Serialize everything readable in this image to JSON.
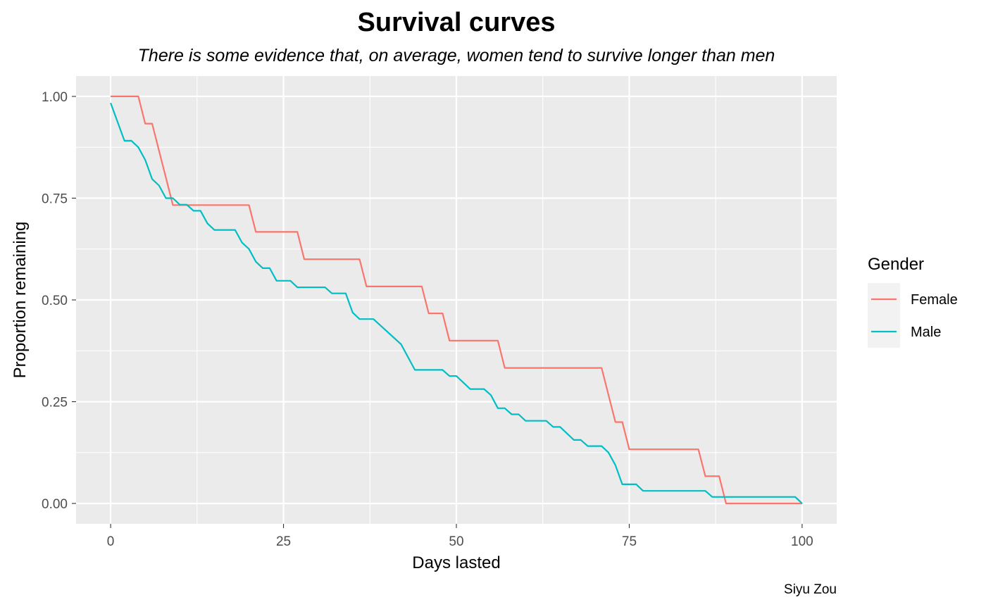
{
  "chart_data": {
    "type": "line",
    "title": "Survival curves",
    "subtitle": "There is some evidence that, on average, women tend to survive longer than men",
    "xlabel": "Days lasted",
    "ylabel": "Proportion remaining",
    "caption": "Siyu Zou",
    "xlim": [
      -5,
      105
    ],
    "ylim": [
      -0.05,
      1.05
    ],
    "x_ticks": [
      0,
      25,
      50,
      75,
      100
    ],
    "x_tick_labels": [
      "0",
      "25",
      "50",
      "75",
      "100"
    ],
    "y_ticks": [
      0,
      0.25,
      0.5,
      0.75,
      1.0
    ],
    "y_tick_labels": [
      "0.00",
      "0.25",
      "0.50",
      "0.75",
      "1.00"
    ],
    "grid": true,
    "background": "#ebebeb",
    "legend": {
      "title": "Gender",
      "position": "right",
      "entries": [
        "Female",
        "Male"
      ]
    },
    "series": [
      {
        "name": "Female",
        "color": "#f8766d",
        "x": [
          0,
          4,
          5,
          6,
          9,
          20,
          21,
          27,
          28,
          36,
          37,
          45,
          46,
          48,
          49,
          56,
          57,
          71,
          73,
          74,
          75,
          85,
          86,
          88,
          89,
          100
        ],
        "y": [
          1.0,
          1.0,
          0.933,
          0.933,
          0.733,
          0.733,
          0.667,
          0.667,
          0.6,
          0.6,
          0.533,
          0.533,
          0.467,
          0.467,
          0.4,
          0.4,
          0.333,
          0.333,
          0.2,
          0.2,
          0.133,
          0.133,
          0.067,
          0.067,
          0.0,
          0.0
        ]
      },
      {
        "name": "Male",
        "color": "#00bfc4",
        "x": [
          0,
          2,
          3,
          4,
          5,
          6,
          7,
          8,
          9,
          10,
          11,
          12,
          13,
          14,
          15,
          18,
          19,
          20,
          21,
          22,
          23,
          24,
          26,
          27,
          31,
          32,
          34,
          35,
          36,
          38,
          42,
          44,
          48,
          49,
          50,
          52,
          54,
          55,
          56,
          57,
          58,
          59,
          60,
          63,
          64,
          65,
          67,
          68,
          69,
          71,
          72,
          73,
          74,
          76,
          77,
          86,
          87,
          99,
          100
        ],
        "y": [
          0.984,
          0.891,
          0.891,
          0.875,
          0.844,
          0.797,
          0.781,
          0.75,
          0.75,
          0.734,
          0.734,
          0.719,
          0.719,
          0.688,
          0.672,
          0.672,
          0.641,
          0.625,
          0.594,
          0.578,
          0.578,
          0.547,
          0.547,
          0.531,
          0.531,
          0.516,
          0.516,
          0.469,
          0.453,
          0.453,
          0.391,
          0.328,
          0.328,
          0.313,
          0.313,
          0.281,
          0.281,
          0.266,
          0.234,
          0.234,
          0.219,
          0.219,
          0.203,
          0.203,
          0.188,
          0.188,
          0.156,
          0.156,
          0.141,
          0.141,
          0.125,
          0.094,
          0.047,
          0.047,
          0.031,
          0.031,
          0.016,
          0.016,
          0.0
        ]
      }
    ]
  }
}
